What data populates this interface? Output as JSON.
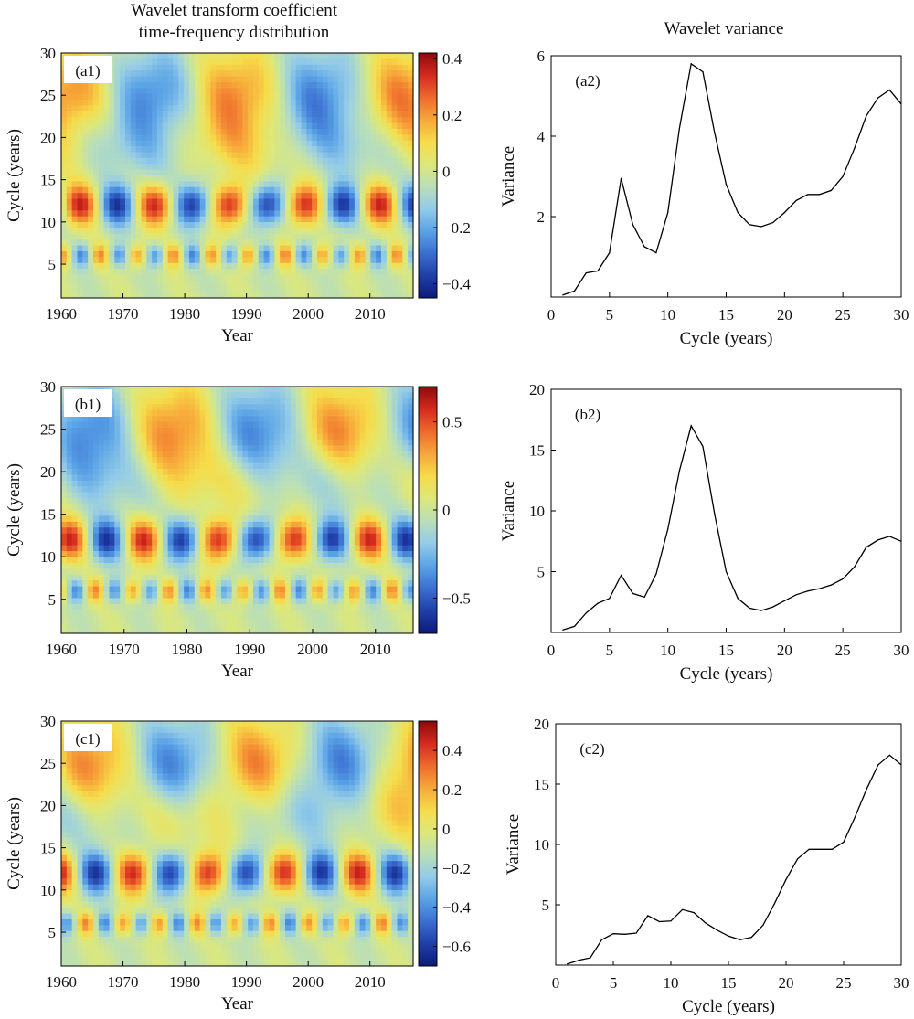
{
  "figure": {
    "left_title_line1": "Wavelet transform coefficient",
    "left_title_line2": "time-frequency distribution",
    "right_title": "Wavelet variance"
  },
  "chart_data": [
    {
      "id": "a1",
      "type": "heatmap",
      "panel_label": "(a1)",
      "xlabel": "Year",
      "ylabel": "Cycle (years)",
      "xlim": [
        1960,
        2017
      ],
      "ylim": [
        1,
        30
      ],
      "xticks": [
        "1960",
        "1970",
        "1980",
        "1990",
        "2000",
        "2010"
      ],
      "yticks": [
        "5",
        "10",
        "15",
        "20",
        "25",
        "30"
      ],
      "colorbar_range": [
        -0.45,
        0.42
      ],
      "colorbar_ticks": [
        "−0.4",
        "−0.2",
        "0",
        "0.2",
        "0.4"
      ],
      "colormap": [
        "#0b1b7a",
        "#1f3fa8",
        "#3b6fd0",
        "#5aa3e6",
        "#93cbe8",
        "#b9dfb9",
        "#dde87a",
        "#f6dc4a",
        "#f7a83a",
        "#ee6a2c",
        "#d42a1f",
        "#8c0a0a"
      ]
    },
    {
      "id": "a2",
      "type": "line",
      "panel_label": "(a2)",
      "xlabel": "Cycle (years)",
      "ylabel": "Variance",
      "xlim": [
        0,
        30
      ],
      "ylim": [
        0,
        6
      ],
      "xticks": [
        "0",
        "5",
        "10",
        "15",
        "20",
        "25",
        "30"
      ],
      "yticks": [
        "2",
        "4",
        "6"
      ],
      "x": [
        1,
        2,
        3,
        4,
        5,
        6,
        7,
        8,
        9,
        10,
        11,
        12,
        13,
        14,
        15,
        16,
        17,
        18,
        19,
        20,
        21,
        22,
        23,
        24,
        25,
        26,
        27,
        28,
        29,
        30
      ],
      "values": [
        0.05,
        0.15,
        0.6,
        0.65,
        1.1,
        2.95,
        1.8,
        1.25,
        1.1,
        2.1,
        4.2,
        5.8,
        5.6,
        4.1,
        2.8,
        2.1,
        1.8,
        1.75,
        1.85,
        2.1,
        2.4,
        2.55,
        2.55,
        2.65,
        3.0,
        3.7,
        4.5,
        4.95,
        5.15,
        4.8
      ]
    },
    {
      "id": "b1",
      "type": "heatmap",
      "panel_label": "(b1)",
      "xlabel": "Year",
      "ylabel": "Cycle (years)",
      "xlim": [
        1960,
        2016
      ],
      "ylim": [
        1,
        30
      ],
      "xticks": [
        "1960",
        "1970",
        "1980",
        "1990",
        "2000",
        "2010"
      ],
      "yticks": [
        "5",
        "10",
        "15",
        "20",
        "25",
        "30"
      ],
      "colorbar_range": [
        -0.7,
        0.7
      ],
      "colorbar_ticks": [
        "−0.5",
        "0",
        "0.5"
      ],
      "colormap": [
        "#0b1b7a",
        "#1f3fa8",
        "#3b6fd0",
        "#5aa3e6",
        "#93cbe8",
        "#b9dfb9",
        "#dde87a",
        "#f6dc4a",
        "#f7a83a",
        "#ee6a2c",
        "#d42a1f",
        "#8c0a0a"
      ]
    },
    {
      "id": "b2",
      "type": "line",
      "panel_label": "(b2)",
      "xlabel": "Cycle (years)",
      "ylabel": "Variance",
      "xlim": [
        0,
        30
      ],
      "ylim": [
        0,
        20
      ],
      "xticks": [
        "0",
        "5",
        "10",
        "15",
        "20",
        "25",
        "30"
      ],
      "yticks": [
        "5",
        "10",
        "15",
        "20"
      ],
      "x": [
        1,
        2,
        3,
        4,
        5,
        6,
        7,
        8,
        9,
        10,
        11,
        12,
        13,
        14,
        15,
        16,
        17,
        18,
        19,
        20,
        21,
        22,
        23,
        24,
        25,
        26,
        27,
        28,
        29,
        30
      ],
      "values": [
        0.2,
        0.5,
        1.6,
        2.4,
        2.8,
        4.7,
        3.2,
        2.9,
        4.8,
        8.5,
        13.3,
        17.0,
        15.3,
        9.8,
        5.0,
        2.8,
        2.0,
        1.8,
        2.1,
        2.6,
        3.1,
        3.4,
        3.6,
        3.9,
        4.4,
        5.4,
        7.0,
        7.6,
        7.9,
        7.5
      ]
    },
    {
      "id": "c1",
      "type": "heatmap",
      "panel_label": "(c1)",
      "xlabel": "Year",
      "ylabel": "Cycle (years)",
      "xlim": [
        1960,
        2017
      ],
      "ylim": [
        1,
        30
      ],
      "xticks": [
        "1960",
        "1970",
        "1980",
        "1990",
        "2000",
        "2010"
      ],
      "yticks": [
        "5",
        "10",
        "15",
        "20",
        "25",
        "30"
      ],
      "colorbar_range": [
        -0.7,
        0.55
      ],
      "colorbar_ticks": [
        "−0.6",
        "−0.4",
        "−0.2",
        "0",
        "0.2",
        "0.4"
      ],
      "colormap": [
        "#0b1b7a",
        "#1f3fa8",
        "#3b6fd0",
        "#5aa3e6",
        "#93cbe8",
        "#b9dfb9",
        "#dde87a",
        "#f6dc4a",
        "#f7a83a",
        "#ee6a2c",
        "#d42a1f",
        "#8c0a0a"
      ]
    },
    {
      "id": "c2",
      "type": "line",
      "panel_label": "(c2)",
      "xlabel": "Cycle (years)",
      "ylabel": "Variance",
      "xlim": [
        0,
        30
      ],
      "ylim": [
        0,
        20
      ],
      "xticks": [
        "0",
        "5",
        "10",
        "15",
        "20",
        "25",
        "30"
      ],
      "yticks": [
        "5",
        "10",
        "15",
        "20"
      ],
      "x": [
        1,
        2,
        3,
        4,
        5,
        6,
        7,
        8,
        9,
        10,
        11,
        12,
        13,
        14,
        15,
        16,
        17,
        18,
        19,
        20,
        21,
        22,
        23,
        24,
        25,
        26,
        27,
        28,
        29,
        30
      ],
      "values": [
        0.1,
        0.4,
        0.6,
        2.1,
        2.6,
        2.55,
        2.65,
        4.1,
        3.6,
        3.65,
        4.6,
        4.35,
        3.5,
        2.9,
        2.4,
        2.1,
        2.3,
        3.3,
        5.1,
        7.1,
        8.8,
        9.6,
        9.6,
        9.6,
        10.2,
        12.3,
        14.6,
        16.6,
        17.4,
        16.6
      ]
    }
  ]
}
